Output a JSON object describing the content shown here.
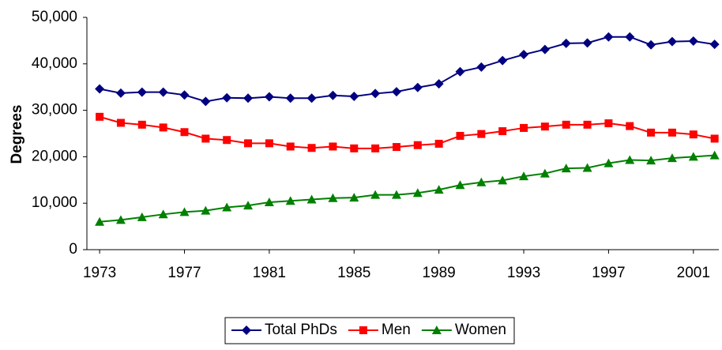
{
  "chart_data": {
    "type": "line",
    "y_label": "Degrees",
    "x": [
      1973,
      1974,
      1975,
      1976,
      1977,
      1978,
      1979,
      1980,
      1981,
      1982,
      1983,
      1984,
      1985,
      1986,
      1987,
      1988,
      1989,
      1990,
      1991,
      1992,
      1993,
      1994,
      1995,
      1996,
      1997,
      1998,
      1999,
      2000,
      2001,
      2002
    ],
    "series": [
      {
        "name": "Total PhDs",
        "color": "#000080",
        "marker": "diamond",
        "values": [
          34600,
          33700,
          33900,
          33900,
          33300,
          31900,
          32700,
          32600,
          32900,
          32600,
          32600,
          33200,
          33000,
          33600,
          34000,
          34900,
          35700,
          38300,
          39300,
          40700,
          42000,
          43100,
          44400,
          44500,
          45800,
          45800,
          44100,
          44800,
          44900,
          44200
        ]
      },
      {
        "name": "Men",
        "color": "#ff0000",
        "marker": "square",
        "values": [
          28600,
          27300,
          26900,
          26300,
          25300,
          23900,
          23600,
          22900,
          22900,
          22200,
          21900,
          22200,
          21800,
          21800,
          22100,
          22500,
          22800,
          24500,
          24900,
          25500,
          26200,
          26500,
          26900,
          26900,
          27200,
          26600,
          25200,
          25200,
          24800,
          23900
        ]
      },
      {
        "name": "Women",
        "color": "#008000",
        "marker": "triangle",
        "values": [
          6000,
          6400,
          7000,
          7600,
          8100,
          8400,
          9100,
          9500,
          10200,
          10500,
          10800,
          11100,
          11200,
          11800,
          11800,
          12200,
          12900,
          13900,
          14500,
          14900,
          15800,
          16400,
          17500,
          17600,
          18600,
          19300,
          19200,
          19700,
          20000,
          20300
        ]
      }
    ],
    "xlim": [
      1972.4,
      2002.2
    ],
    "xticks": [
      1973,
      1977,
      1981,
      1985,
      1989,
      1993,
      1997,
      2001
    ],
    "ylim": [
      0,
      50000
    ],
    "yticks": [
      0,
      {
        "value": 10000,
        "label": "10,000"
      },
      {
        "value": 20000,
        "label": "20,000"
      },
      {
        "value": 30000,
        "label": "30,000"
      },
      {
        "value": 40000,
        "label": "40,000"
      },
      {
        "value": 50000,
        "label": "50,000"
      }
    ],
    "grid": false,
    "legend": "bottom"
  }
}
